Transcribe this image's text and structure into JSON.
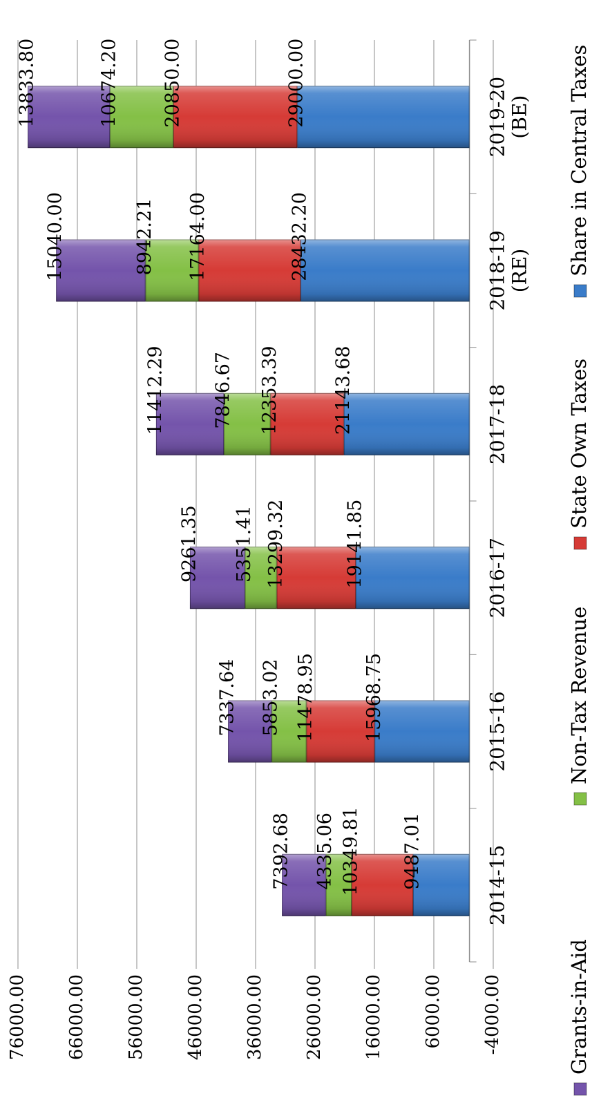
{
  "chart_data": {
    "type": "bar",
    "stacked": true,
    "orientation": "rotated-90-clockwise",
    "categories": [
      "2014-15",
      "2015-16",
      "2016-17",
      "2017-18",
      "2018-19\n(RE)",
      "2019-20\n(BE)"
    ],
    "series": [
      {
        "name": "Share in Central Taxes",
        "color": "#3a7cc9",
        "values": [
          9487.01,
          15968.75,
          19141.85,
          21143.68,
          28432.2,
          29000.0
        ]
      },
      {
        "name": "State Own Taxes",
        "color": "#d63b36",
        "values": [
          10349.81,
          11478.95,
          13299.32,
          12353.39,
          17164.0,
          20850.0
        ]
      },
      {
        "name": "Non-Tax Revenue",
        "color": "#84c046",
        "values": [
          4335.06,
          5853.02,
          5351.41,
          7846.67,
          8942.21,
          10674.2
        ]
      },
      {
        "name": "Grants-in-Aid",
        "color": "#7454ab",
        "values": [
          7392.68,
          7337.64,
          9261.35,
          11412.29,
          15040.0,
          13833.8
        ]
      }
    ],
    "data_labels": [
      [
        "9487.01",
        "15968.75",
        "19141.85",
        "21143.68",
        "28432.20",
        "29000.00"
      ],
      [
        "10349.81",
        "11478.95",
        "13299.32",
        "12353.39",
        "17164.00",
        "20850.00"
      ],
      [
        "4335.06",
        "5853.02",
        "5351.41",
        "7846.67",
        "8942.21",
        "10674.20"
      ],
      [
        "7392.68",
        "7337.64",
        "9261.35",
        "11412.29",
        "15040.00",
        "13833.80"
      ]
    ],
    "y_ticks": [
      "-4000.00",
      "6000.00",
      "16000.00",
      "26000.00",
      "36000.00",
      "46000.00",
      "56000.00",
      "66000.00",
      "76000.00"
    ],
    "ylim": [
      -4000,
      76000
    ],
    "grid": true,
    "legend": {
      "position": "bottom",
      "order": [
        "Grants-in-Aid",
        "Non-Tax Revenue",
        "State Own Taxes",
        "Share in Central Taxes"
      ]
    },
    "title": "",
    "xlabel": "",
    "ylabel": ""
  }
}
